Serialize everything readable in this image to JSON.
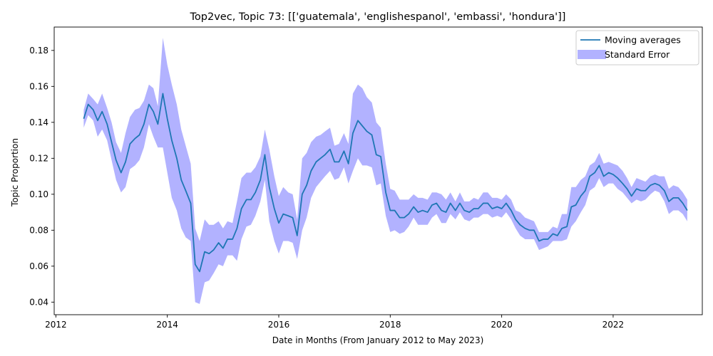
{
  "chart_data": {
    "type": "line",
    "title": "Top2vec, Topic 73: [['guatemala', 'englishespanol', 'embassi', 'hondura']]",
    "xlabel": "Date in Months (From January 2012 to May 2023)",
    "ylabel": "Topic Proportion",
    "xlim": [
      2011.97,
      2023.6
    ],
    "ylim": [
      0.033,
      0.193
    ],
    "x_ticks": [
      2012,
      2014,
      2016,
      2018,
      2020,
      2022
    ],
    "y_ticks": [
      0.04,
      0.06,
      0.08,
      0.1,
      0.12,
      0.14,
      0.16,
      0.18
    ],
    "y_tick_labels": [
      "0.04",
      "0.06",
      "0.08",
      "0.10",
      "0.12",
      "0.14",
      "0.16",
      "0.18"
    ],
    "grid": false,
    "legend_position": "top-right",
    "series": [
      {
        "name": "Moving averages",
        "type": "line",
        "color": "#1f77b4",
        "x": [
          2012.5,
          2012.58,
          2012.67,
          2012.75,
          2012.83,
          2012.92,
          2013.0,
          2013.08,
          2013.17,
          2013.25,
          2013.33,
          2013.42,
          2013.5,
          2013.58,
          2013.67,
          2013.75,
          2013.83,
          2013.92,
          2014.0,
          2014.08,
          2014.17,
          2014.25,
          2014.33,
          2014.42,
          2014.5,
          2014.58,
          2014.67,
          2014.75,
          2014.83,
          2014.92,
          2015.0,
          2015.08,
          2015.17,
          2015.25,
          2015.33,
          2015.42,
          2015.5,
          2015.58,
          2015.67,
          2015.75,
          2015.83,
          2015.92,
          2016.0,
          2016.08,
          2016.17,
          2016.25,
          2016.33,
          2016.42,
          2016.5,
          2016.58,
          2016.67,
          2016.75,
          2016.83,
          2016.92,
          2017.0,
          2017.08,
          2017.17,
          2017.25,
          2017.33,
          2017.42,
          2017.5,
          2017.58,
          2017.67,
          2017.75,
          2017.83,
          2017.92,
          2018.0,
          2018.08,
          2018.17,
          2018.25,
          2018.33,
          2018.42,
          2018.5,
          2018.58,
          2018.67,
          2018.75,
          2018.83,
          2018.92,
          2019.0,
          2019.08,
          2019.17,
          2019.25,
          2019.33,
          2019.42,
          2019.5,
          2019.58,
          2019.67,
          2019.75,
          2019.83,
          2019.92,
          2020.0,
          2020.08,
          2020.17,
          2020.25,
          2020.33,
          2020.42,
          2020.5,
          2020.58,
          2020.67,
          2020.75,
          2020.83,
          2020.92,
          2021.0,
          2021.08,
          2021.17,
          2021.25,
          2021.33,
          2021.42,
          2021.5,
          2021.58,
          2021.67,
          2021.75,
          2021.83,
          2021.92,
          2022.0,
          2022.08,
          2022.17,
          2022.25,
          2022.33,
          2022.42,
          2022.5,
          2022.58,
          2022.67,
          2022.75,
          2022.83,
          2022.92,
          2023.0,
          2023.08,
          2023.17,
          2023.25,
          2023.33
        ],
        "y": [
          0.142,
          0.15,
          0.147,
          0.141,
          0.146,
          0.139,
          0.129,
          0.119,
          0.112,
          0.118,
          0.128,
          0.131,
          0.133,
          0.139,
          0.15,
          0.146,
          0.139,
          0.156,
          0.142,
          0.13,
          0.12,
          0.108,
          0.102,
          0.095,
          0.061,
          0.057,
          0.068,
          0.067,
          0.069,
          0.073,
          0.07,
          0.075,
          0.075,
          0.081,
          0.092,
          0.097,
          0.097,
          0.101,
          0.108,
          0.122,
          0.104,
          0.092,
          0.084,
          0.089,
          0.088,
          0.087,
          0.077,
          0.1,
          0.105,
          0.113,
          0.118,
          0.12,
          0.122,
          0.125,
          0.118,
          0.118,
          0.124,
          0.117,
          0.134,
          0.141,
          0.138,
          0.135,
          0.133,
          0.122,
          0.121,
          0.101,
          0.091,
          0.091,
          0.087,
          0.087,
          0.089,
          0.093,
          0.09,
          0.091,
          0.09,
          0.094,
          0.095,
          0.091,
          0.09,
          0.095,
          0.091,
          0.095,
          0.091,
          0.09,
          0.092,
          0.092,
          0.095,
          0.095,
          0.092,
          0.093,
          0.092,
          0.095,
          0.091,
          0.086,
          0.083,
          0.081,
          0.08,
          0.08,
          0.074,
          0.075,
          0.075,
          0.078,
          0.077,
          0.081,
          0.082,
          0.093,
          0.094,
          0.099,
          0.102,
          0.11,
          0.112,
          0.116,
          0.11,
          0.112,
          0.111,
          0.109,
          0.106,
          0.103,
          0.099,
          0.103,
          0.102,
          0.102,
          0.105,
          0.106,
          0.105,
          0.102,
          0.096,
          0.098,
          0.098,
          0.095,
          0.091
        ]
      },
      {
        "name": "Standard Error",
        "type": "band",
        "color": "#0000ff",
        "opacity": 0.3,
        "upper": [
          0.147,
          0.156,
          0.153,
          0.15,
          0.156,
          0.148,
          0.14,
          0.129,
          0.123,
          0.134,
          0.143,
          0.147,
          0.148,
          0.152,
          0.161,
          0.159,
          0.149,
          0.187,
          0.172,
          0.161,
          0.15,
          0.136,
          0.127,
          0.117,
          0.081,
          0.074,
          0.086,
          0.083,
          0.083,
          0.085,
          0.081,
          0.085,
          0.084,
          0.096,
          0.109,
          0.112,
          0.112,
          0.115,
          0.121,
          0.136,
          0.125,
          0.11,
          0.099,
          0.104,
          0.101,
          0.1,
          0.086,
          0.12,
          0.123,
          0.129,
          0.132,
          0.133,
          0.135,
          0.137,
          0.127,
          0.128,
          0.134,
          0.128,
          0.156,
          0.161,
          0.159,
          0.154,
          0.151,
          0.14,
          0.137,
          0.117,
          0.103,
          0.102,
          0.097,
          0.097,
          0.097,
          0.1,
          0.098,
          0.098,
          0.097,
          0.101,
          0.101,
          0.1,
          0.097,
          0.101,
          0.096,
          0.101,
          0.096,
          0.096,
          0.098,
          0.097,
          0.101,
          0.101,
          0.098,
          0.098,
          0.097,
          0.1,
          0.097,
          0.091,
          0.09,
          0.087,
          0.086,
          0.085,
          0.079,
          0.079,
          0.079,
          0.082,
          0.081,
          0.089,
          0.089,
          0.104,
          0.104,
          0.108,
          0.11,
          0.116,
          0.118,
          0.123,
          0.117,
          0.118,
          0.117,
          0.116,
          0.113,
          0.109,
          0.104,
          0.109,
          0.108,
          0.107,
          0.11,
          0.111,
          0.11,
          0.11,
          0.103,
          0.105,
          0.104,
          0.101,
          0.097
        ],
        "lower": [
          0.137,
          0.144,
          0.141,
          0.132,
          0.136,
          0.13,
          0.119,
          0.108,
          0.101,
          0.104,
          0.114,
          0.116,
          0.119,
          0.126,
          0.139,
          0.132,
          0.126,
          0.126,
          0.112,
          0.098,
          0.091,
          0.081,
          0.076,
          0.074,
          0.04,
          0.039,
          0.051,
          0.052,
          0.056,
          0.061,
          0.06,
          0.066,
          0.066,
          0.063,
          0.075,
          0.082,
          0.083,
          0.088,
          0.096,
          0.108,
          0.085,
          0.074,
          0.067,
          0.074,
          0.074,
          0.073,
          0.064,
          0.08,
          0.087,
          0.098,
          0.104,
          0.107,
          0.11,
          0.113,
          0.108,
          0.109,
          0.115,
          0.106,
          0.113,
          0.12,
          0.116,
          0.116,
          0.115,
          0.105,
          0.106,
          0.088,
          0.079,
          0.08,
          0.078,
          0.079,
          0.082,
          0.087,
          0.083,
          0.083,
          0.083,
          0.087,
          0.089,
          0.084,
          0.084,
          0.089,
          0.086,
          0.09,
          0.086,
          0.085,
          0.087,
          0.087,
          0.089,
          0.089,
          0.087,
          0.088,
          0.087,
          0.09,
          0.086,
          0.081,
          0.077,
          0.075,
          0.075,
          0.075,
          0.069,
          0.07,
          0.071,
          0.074,
          0.074,
          0.074,
          0.075,
          0.082,
          0.085,
          0.09,
          0.094,
          0.102,
          0.104,
          0.109,
          0.104,
          0.106,
          0.106,
          0.103,
          0.101,
          0.098,
          0.095,
          0.097,
          0.096,
          0.097,
          0.1,
          0.102,
          0.101,
          0.096,
          0.089,
          0.091,
          0.091,
          0.089,
          0.085
        ]
      }
    ]
  }
}
